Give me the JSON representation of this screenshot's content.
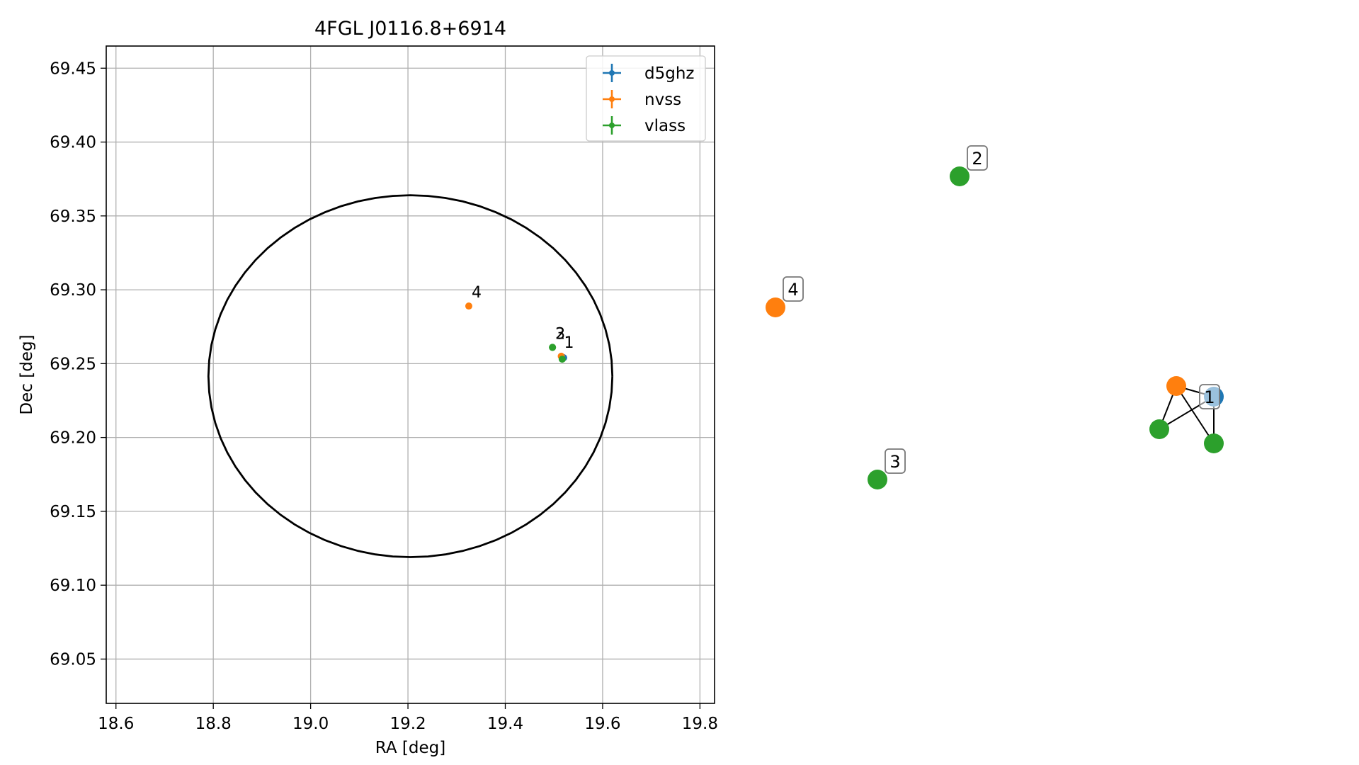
{
  "chart_data": [
    {
      "type": "scatter",
      "title": "4FGL J0116.8+6914",
      "xlabel": "RA [deg]",
      "ylabel": "Dec [deg]",
      "xlim": [
        18.58,
        19.83
      ],
      "ylim": [
        69.02,
        69.465
      ],
      "grid": true,
      "x_ticks": [
        "18.6",
        "18.8",
        "19.0",
        "19.2",
        "19.4",
        "19.6",
        "19.8"
      ],
      "y_ticks": [
        "69.05",
        "69.10",
        "69.15",
        "69.20",
        "69.25",
        "69.30",
        "69.35",
        "69.40",
        "69.45"
      ],
      "legend_position": "top-right",
      "series": [
        {
          "name": "d5ghz",
          "color": "#1f77b4",
          "points": [
            {
              "x": 19.52,
              "y": 69.254,
              "label": ""
            }
          ]
        },
        {
          "name": "nvss",
          "color": "#ff7f0e",
          "points": [
            {
              "x": 19.515,
              "y": 69.255,
              "label": "1"
            },
            {
              "x": 19.325,
              "y": 69.289,
              "label": "4"
            }
          ]
        },
        {
          "name": "vlass",
          "color": "#2ca02c",
          "points": [
            {
              "x": 19.517,
              "y": 69.253,
              "label": ""
            },
            {
              "x": 19.497,
              "y": 69.261,
              "label": "2"
            },
            {
              "x": 19.497,
              "y": 69.261,
              "label": "3"
            }
          ]
        }
      ],
      "error_ellipse": {
        "center": [
          19.205,
          69.2415
        ],
        "semi_ra": 0.415,
        "semi_dec": 0.1225,
        "color": "#000000"
      }
    },
    {
      "type": "network",
      "nodes": [
        {
          "id": "d5ghz",
          "color": "#1f77b4",
          "label": ""
        },
        {
          "id": "nvss-1",
          "color": "#ff7f0e",
          "label": ""
        },
        {
          "id": "vlass-a",
          "color": "#2ca02c",
          "label": ""
        },
        {
          "id": "vlass-b",
          "color": "#2ca02c",
          "label": ""
        },
        {
          "id": "vlass-2",
          "color": "#2ca02c",
          "label": "2"
        },
        {
          "id": "nvss-4",
          "color": "#ff7f0e",
          "label": "4"
        },
        {
          "id": "vlass-3",
          "color": "#2ca02c",
          "label": "3"
        }
      ],
      "edges": [
        [
          "nvss-1",
          "d5ghz"
        ],
        [
          "nvss-1",
          "vlass-a"
        ],
        [
          "nvss-1",
          "vlass-b"
        ],
        [
          "vlass-a",
          "d5ghz"
        ],
        [
          "vlass-b",
          "d5ghz"
        ]
      ],
      "group_label": "1"
    }
  ]
}
